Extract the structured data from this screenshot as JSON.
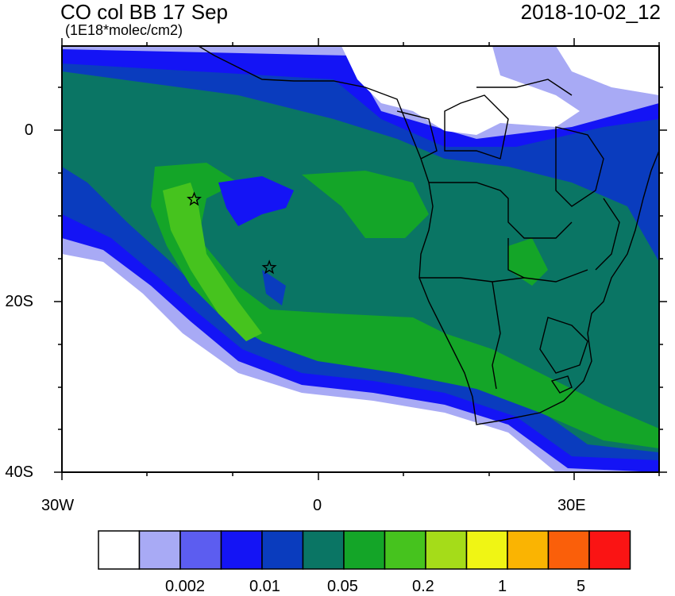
{
  "title": "CO col BB 17 Sep",
  "units": "(1E18*molec/cm2)",
  "datetime": "2018-10-02_12",
  "y_ticks": [
    "0",
    "20S",
    "40S"
  ],
  "x_ticks": [
    "30W",
    "0",
    "30E"
  ],
  "colorbar": {
    "colors": [
      "#ffffff",
      "#a8aaf5",
      "#5c5df0",
      "#1414f5",
      "#0a3cbe",
      "#0a7564",
      "#14a528",
      "#46c31e",
      "#a5dc19",
      "#f0f514",
      "#fab402",
      "#fa5f0a",
      "#fa1414"
    ],
    "labels": [
      "0.002",
      "0.01",
      "0.05",
      "0.2",
      "1",
      "5"
    ]
  },
  "markers": [
    {
      "name": "star-1",
      "lon": -14.5,
      "lat": -8
    },
    {
      "name": "star-2",
      "lon": -5.7,
      "lat": -16
    }
  ]
}
